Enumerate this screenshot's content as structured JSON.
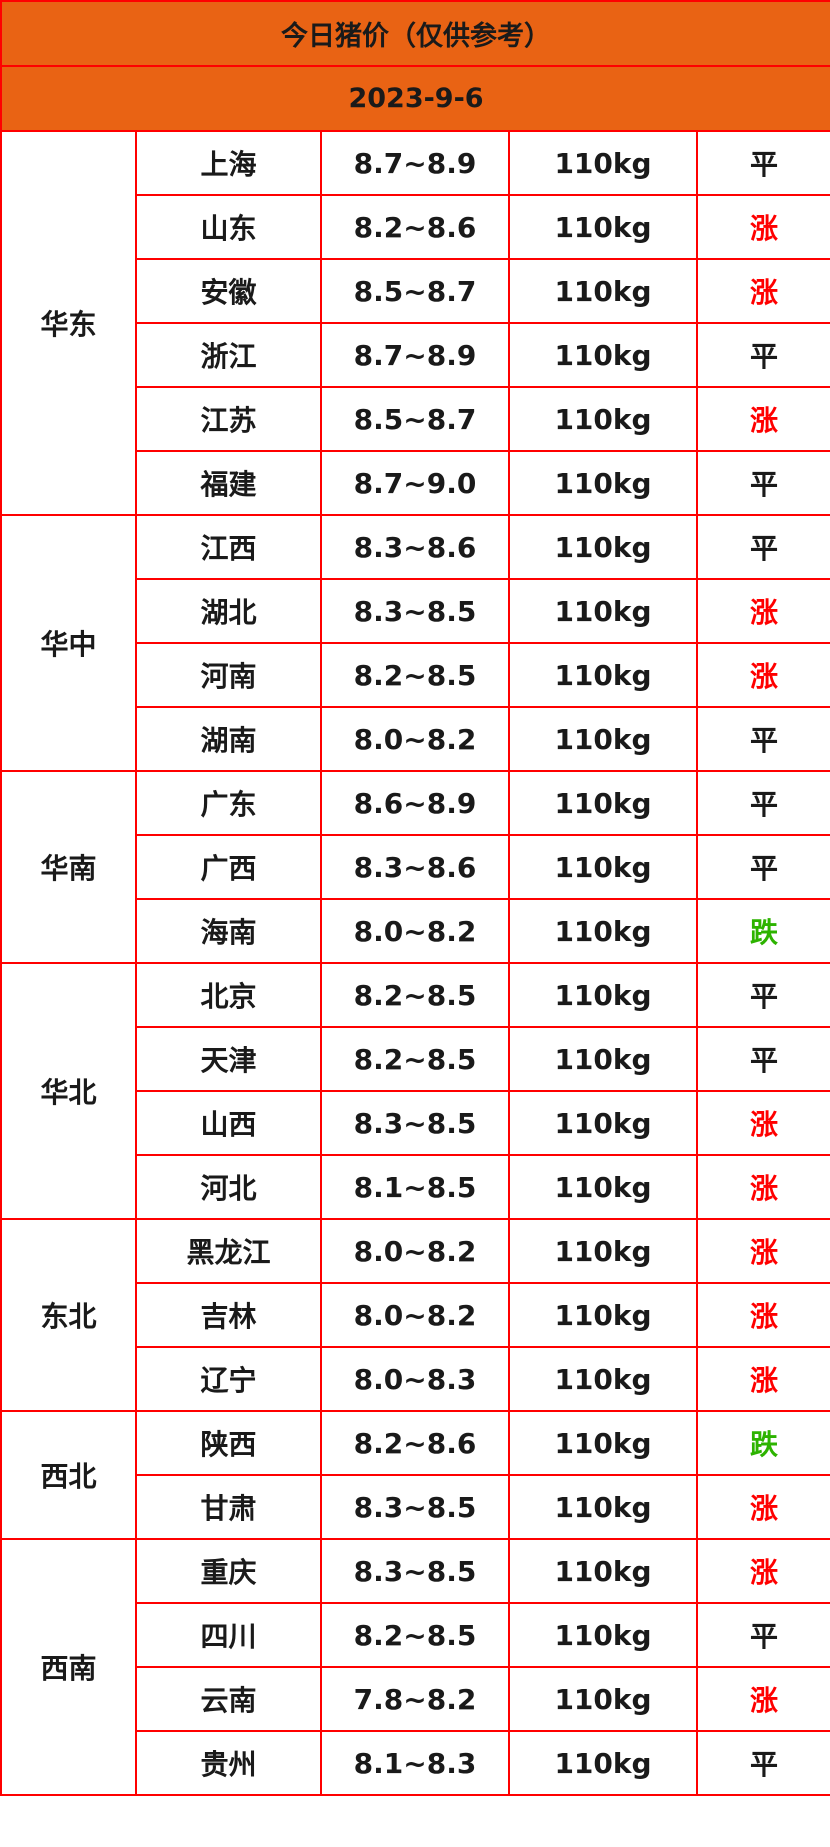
{
  "title": "今日猪价（仅供参考）",
  "date": "2023-9-6",
  "colors": {
    "header_bg": "#e96314",
    "border": "#ff0000",
    "up": "#ff0000",
    "down": "#2db300",
    "flat": "#1a1a1a"
  },
  "regions": [
    {
      "name": "华东",
      "rows": [
        {
          "province": "上海",
          "price": "8.7~8.9",
          "weight": "110kg",
          "trend": "平"
        },
        {
          "province": "山东",
          "price": "8.2~8.6",
          "weight": "110kg",
          "trend": "涨"
        },
        {
          "province": "安徽",
          "price": "8.5~8.7",
          "weight": "110kg",
          "trend": "涨"
        },
        {
          "province": "浙江",
          "price": "8.7~8.9",
          "weight": "110kg",
          "trend": "平"
        },
        {
          "province": "江苏",
          "price": "8.5~8.7",
          "weight": "110kg",
          "trend": "涨"
        },
        {
          "province": "福建",
          "price": "8.7~9.0",
          "weight": "110kg",
          "trend": "平"
        }
      ]
    },
    {
      "name": "华中",
      "rows": [
        {
          "province": "江西",
          "price": "8.3~8.6",
          "weight": "110kg",
          "trend": "平"
        },
        {
          "province": "湖北",
          "price": "8.3~8.5",
          "weight": "110kg",
          "trend": "涨"
        },
        {
          "province": "河南",
          "price": "8.2~8.5",
          "weight": "110kg",
          "trend": "涨"
        },
        {
          "province": "湖南",
          "price": "8.0~8.2",
          "weight": "110kg",
          "trend": "平"
        }
      ]
    },
    {
      "name": "华南",
      "rows": [
        {
          "province": "广东",
          "price": "8.6~8.9",
          "weight": "110kg",
          "trend": "平"
        },
        {
          "province": "广西",
          "price": "8.3~8.6",
          "weight": "110kg",
          "trend": "平"
        },
        {
          "province": "海南",
          "price": "8.0~8.2",
          "weight": "110kg",
          "trend": "跌"
        }
      ]
    },
    {
      "name": "华北",
      "rows": [
        {
          "province": "北京",
          "price": "8.2~8.5",
          "weight": "110kg",
          "trend": "平"
        },
        {
          "province": "天津",
          "price": "8.2~8.5",
          "weight": "110kg",
          "trend": "平"
        },
        {
          "province": "山西",
          "price": "8.3~8.5",
          "weight": "110kg",
          "trend": "涨"
        },
        {
          "province": "河北",
          "price": "8.1~8.5",
          "weight": "110kg",
          "trend": "涨"
        }
      ]
    },
    {
      "name": "东北",
      "rows": [
        {
          "province": "黑龙江",
          "price": "8.0~8.2",
          "weight": "110kg",
          "trend": "涨"
        },
        {
          "province": "吉林",
          "price": "8.0~8.2",
          "weight": "110kg",
          "trend": "涨"
        },
        {
          "province": "辽宁",
          "price": "8.0~8.3",
          "weight": "110kg",
          "trend": "涨"
        }
      ]
    },
    {
      "name": "西北",
      "rows": [
        {
          "province": "陕西",
          "price": "8.2~8.6",
          "weight": "110kg",
          "trend": "跌"
        },
        {
          "province": "甘肃",
          "price": "8.3~8.5",
          "weight": "110kg",
          "trend": "涨"
        }
      ]
    },
    {
      "name": "西南",
      "rows": [
        {
          "province": "重庆",
          "price": "8.3~8.5",
          "weight": "110kg",
          "trend": "涨"
        },
        {
          "province": "四川",
          "price": "8.2~8.5",
          "weight": "110kg",
          "trend": "平"
        },
        {
          "province": "云南",
          "price": "7.8~8.2",
          "weight": "110kg",
          "trend": "涨"
        },
        {
          "province": "贵州",
          "price": "8.1~8.3",
          "weight": "110kg",
          "trend": "平"
        }
      ]
    }
  ]
}
